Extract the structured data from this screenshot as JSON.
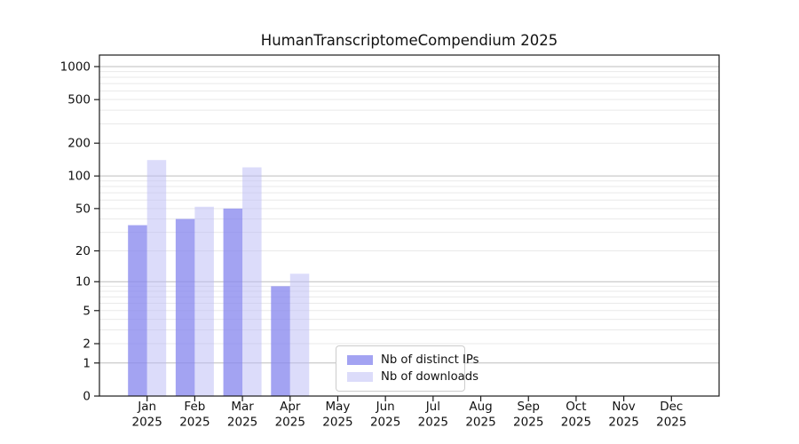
{
  "chart_data": {
    "type": "bar",
    "title": "HumanTranscriptomeCompendium 2025",
    "categories": [
      "Jan",
      "Feb",
      "Mar",
      "Apr",
      "May",
      "Jun",
      "Jul",
      "Aug",
      "Sep",
      "Oct",
      "Nov",
      "Dec"
    ],
    "category_sub_label": "2025",
    "series": [
      {
        "name": "Nb of distinct IPs",
        "color": "rgba(137,137,238,0.78)",
        "values": [
          35,
          40,
          50,
          9,
          0,
          0,
          0,
          0,
          0,
          0,
          0,
          0
        ]
      },
      {
        "name": "Nb of downloads",
        "color": "rgba(185,185,245,0.5)",
        "values": [
          140,
          52,
          120,
          12,
          0,
          0,
          0,
          0,
          0,
          0,
          0,
          0
        ]
      }
    ],
    "y_axis": {
      "scale": "log10(1+v)",
      "tick_values": [
        0,
        1,
        2,
        5,
        10,
        20,
        50,
        100,
        200,
        500,
        1000
      ],
      "major_grid_values": [
        1,
        10,
        100,
        1000
      ],
      "minor_grid_values": [
        2,
        3,
        4,
        5,
        6,
        7,
        8,
        9,
        20,
        30,
        40,
        50,
        60,
        70,
        80,
        90,
        200,
        300,
        400,
        500,
        600,
        700,
        800,
        900
      ],
      "ylim": [
        0,
        1275
      ]
    },
    "xlabel": "",
    "ylabel": "",
    "grid": "horizontal",
    "legend_position": "inside-bottom-center-left"
  }
}
